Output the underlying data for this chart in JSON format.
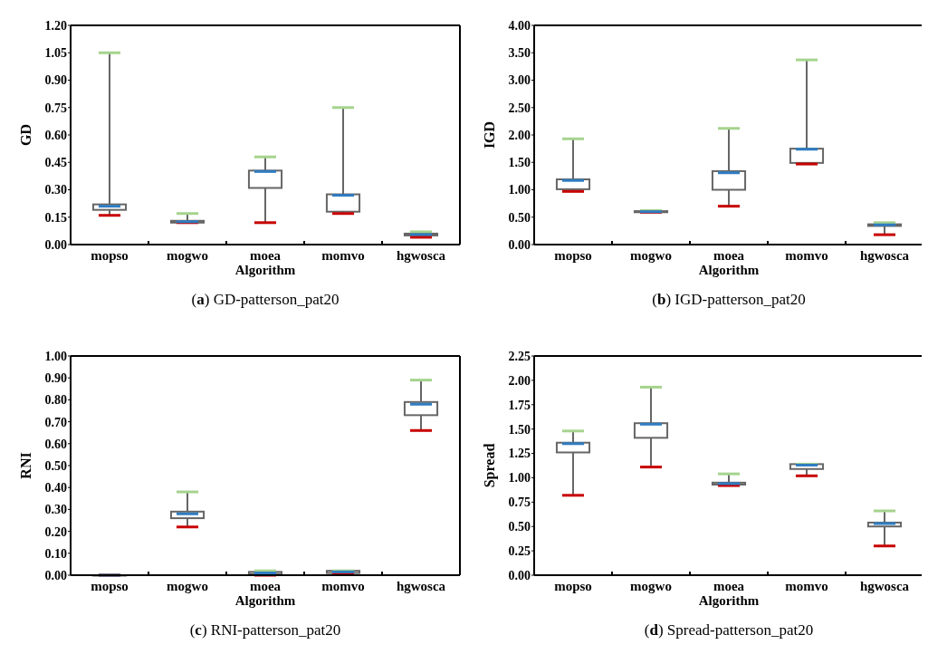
{
  "chart_data": [
    {
      "type": "box",
      "title": "(a) GD-patterson_pat20",
      "xlabel": "Algorithm",
      "ylabel": "GD",
      "categories": [
        "mopso",
        "mogwo",
        "moea",
        "momvo",
        "hgwosca"
      ],
      "ylim": [
        0,
        1.2
      ],
      "yticks": [
        {
          "value": 0,
          "label": "0.00"
        },
        {
          "value": 0.15,
          "label": "0.15"
        },
        {
          "value": 0.3,
          "label": "0.30"
        },
        {
          "value": 0.45,
          "label": "0.45"
        },
        {
          "value": 0.6,
          "label": "0.60"
        },
        {
          "value": 0.75,
          "label": "0.75"
        },
        {
          "value": 0.9,
          "label": "0.90"
        },
        {
          "value": 1.05,
          "label": "1.05"
        },
        {
          "value": 1.2,
          "label": "1.20"
        }
      ],
      "series": [
        {
          "color": "#666666",
          "boxes": [
            {
              "low": 0.16,
              "q1": 0.19,
              "median": 0.21,
              "q3": 0.22,
              "high": 1.05
            },
            {
              "low": 0.12,
              "q1": 0.12,
              "median": 0.125,
              "q3": 0.13,
              "high": 0.17
            },
            {
              "low": 0.12,
              "q1": 0.31,
              "median": 0.4,
              "q3": 0.405,
              "high": 0.48
            },
            {
              "low": 0.17,
              "q1": 0.18,
              "median": 0.27,
              "q3": 0.275,
              "high": 0.75
            },
            {
              "low": 0.04,
              "q1": 0.05,
              "median": 0.055,
              "q3": 0.06,
              "high": 0.07
            }
          ]
        }
      ]
    },
    {
      "type": "box",
      "title": "(b) IGD-patterson_pat20",
      "xlabel": "Algorithm",
      "ylabel": "IGD",
      "categories": [
        "mopso",
        "mogwo",
        "moea",
        "momvo",
        "hgwosca"
      ],
      "ylim": [
        0,
        4
      ],
      "yticks": [
        {
          "value": 0,
          "label": "0.00"
        },
        {
          "value": 0.5,
          "label": "0.50"
        },
        {
          "value": 1,
          "label": "1.00"
        },
        {
          "value": 1.5,
          "label": "1.50"
        },
        {
          "value": 2,
          "label": "2.00"
        },
        {
          "value": 2.5,
          "label": "2.50"
        },
        {
          "value": 3,
          "label": "3.00"
        },
        {
          "value": 3.5,
          "label": "3.50"
        },
        {
          "value": 4,
          "label": "4.00"
        }
      ],
      "series": [
        {
          "color": "#666666",
          "boxes": [
            {
              "low": 0.97,
              "q1": 1.01,
              "median": 1.17,
              "q3": 1.19,
              "high": 1.93
            },
            {
              "low": 0.59,
              "q1": 0.59,
              "median": 0.6,
              "q3": 0.61,
              "high": 0.62
            },
            {
              "low": 0.7,
              "q1": 1.0,
              "median": 1.31,
              "q3": 1.34,
              "high": 2.12
            },
            {
              "low": 1.47,
              "q1": 1.49,
              "median": 1.74,
              "q3": 1.75,
              "high": 3.37
            },
            {
              "low": 0.18,
              "q1": 0.34,
              "median": 0.36,
              "q3": 0.37,
              "high": 0.4
            }
          ]
        }
      ]
    },
    {
      "type": "box",
      "title": "(c) RNI-patterson_pat20",
      "xlabel": "Algorithm",
      "ylabel": "RNI",
      "categories": [
        "mopso",
        "mogwo",
        "moea",
        "momvo",
        "hgwosca"
      ],
      "ylim": [
        0,
        1
      ],
      "yticks": [
        {
          "value": 0,
          "label": "0.00"
        },
        {
          "value": 0.1,
          "label": "0.10"
        },
        {
          "value": 0.2,
          "label": "0.20"
        },
        {
          "value": 0.3,
          "label": "0.30"
        },
        {
          "value": 0.4,
          "label": "0.40"
        },
        {
          "value": 0.5,
          "label": "0.50"
        },
        {
          "value": 0.6,
          "label": "0.60"
        },
        {
          "value": 0.7,
          "label": "0.70"
        },
        {
          "value": 0.8,
          "label": "0.80"
        },
        {
          "value": 0.9,
          "label": "0.90"
        },
        {
          "value": 1,
          "label": "1.00"
        }
      ],
      "series": [
        {
          "color": "#666666",
          "boxes": [
            {
              "low": 0,
              "q1": 0,
              "median": 0,
              "q3": 0,
              "high": 0
            },
            {
              "low": 0.22,
              "q1": 0.26,
              "median": 0.28,
              "q3": 0.29,
              "high": 0.38
            },
            {
              "low": 0,
              "q1": 0.005,
              "median": 0.01,
              "q3": 0.015,
              "high": 0.02
            },
            {
              "low": 0.005,
              "q1": 0.01,
              "median": 0.015,
              "q3": 0.02,
              "high": 0.02
            },
            {
              "low": 0.66,
              "q1": 0.73,
              "median": 0.78,
              "q3": 0.79,
              "high": 0.89
            }
          ]
        }
      ]
    },
    {
      "type": "box",
      "title": "(d) Spread-patterson_pat20",
      "xlabel": "Algorithm",
      "ylabel": "Spread",
      "categories": [
        "mopso",
        "mogwo",
        "moea",
        "momvo",
        "hgwosca"
      ],
      "ylim": [
        0,
        2.25
      ],
      "yticks": [
        {
          "value": 0,
          "label": "0.00"
        },
        {
          "value": 0.25,
          "label": "0.25"
        },
        {
          "value": 0.5,
          "label": "0.50"
        },
        {
          "value": 0.75,
          "label": "0.75"
        },
        {
          "value": 1,
          "label": "1.00"
        },
        {
          "value": 1.25,
          "label": "1.25"
        },
        {
          "value": 1.5,
          "label": "1.50"
        },
        {
          "value": 1.75,
          "label": "1.75"
        },
        {
          "value": 2,
          "label": "2.00"
        },
        {
          "value": 2.25,
          "label": "2.25"
        }
      ],
      "series": [
        {
          "color": "#666666",
          "boxes": [
            {
              "low": 0.82,
              "q1": 1.26,
              "median": 1.35,
              "q3": 1.36,
              "high": 1.48
            },
            {
              "low": 1.11,
              "q1": 1.41,
              "median": 1.55,
              "q3": 1.56,
              "high": 1.93
            },
            {
              "low": 0.92,
              "q1": 0.93,
              "median": 0.94,
              "q3": 0.95,
              "high": 1.04
            },
            {
              "low": 1.02,
              "q1": 1.09,
              "median": 1.13,
              "q3": 1.14,
              "high": 1.14
            },
            {
              "low": 0.3,
              "q1": 0.5,
              "median": 0.53,
              "q3": 0.54,
              "high": 0.66
            }
          ]
        }
      ]
    }
  ]
}
